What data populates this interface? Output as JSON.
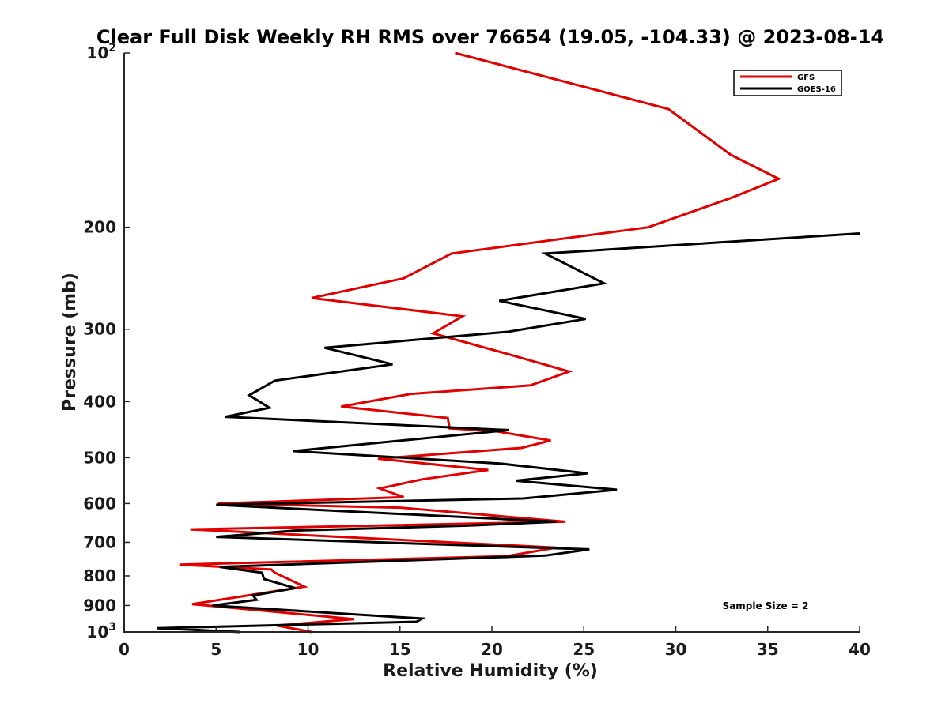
{
  "chart_data": {
    "type": "line",
    "title": "Clear Full Disk Weekly RH RMS over 76654 (19.05, -104.33) @ 2023-08-14",
    "xlabel": "Relative Humidity (%)",
    "ylabel": "Pressure (mb)",
    "xlim": [
      0,
      40
    ],
    "ylim": [
      100,
      1000
    ],
    "yscale": "log",
    "ydirection": "reverse",
    "xticks": [
      0,
      5,
      10,
      15,
      20,
      25,
      30,
      35,
      40
    ],
    "xtick_labels": [
      "0",
      "5",
      "10",
      "15",
      "20",
      "25",
      "30",
      "35",
      "40"
    ],
    "yticks": [
      100,
      200,
      300,
      400,
      500,
      600,
      700,
      800,
      900,
      1000
    ],
    "ytick_labels": [
      {
        "base": "10",
        "exp": "2"
      },
      {
        "base": "200",
        "exp": ""
      },
      {
        "base": "300",
        "exp": ""
      },
      {
        "base": "400",
        "exp": ""
      },
      {
        "base": "500",
        "exp": ""
      },
      {
        "base": "600",
        "exp": ""
      },
      {
        "base": "700",
        "exp": ""
      },
      {
        "base": "800",
        "exp": ""
      },
      {
        "base": "900",
        "exp": ""
      },
      {
        "base": "10",
        "exp": "3"
      }
    ],
    "legend_position": "top-right",
    "annotation": "Sample Size = 2",
    "series": [
      {
        "name": "GFS",
        "color": "#e00000",
        "points": [
          [
            18.0,
            100
          ],
          [
            29.6,
            125
          ],
          [
            33.0,
            150
          ],
          [
            35.6,
            165
          ],
          [
            33.0,
            178
          ],
          [
            28.5,
            200
          ],
          [
            17.8,
            222
          ],
          [
            15.2,
            245
          ],
          [
            10.2,
            265
          ],
          [
            18.4,
            285
          ],
          [
            16.8,
            305
          ],
          [
            20.7,
            330
          ],
          [
            24.2,
            355
          ],
          [
            22.1,
            375
          ],
          [
            15.6,
            388
          ],
          [
            11.8,
            408
          ],
          [
            17.6,
            427
          ],
          [
            17.7,
            445
          ],
          [
            20.2,
            450
          ],
          [
            23.2,
            467
          ],
          [
            21.6,
            481
          ],
          [
            13.8,
            502
          ],
          [
            19.8,
            525
          ],
          [
            16.2,
            545
          ],
          [
            13.9,
            565
          ],
          [
            15.2,
            585
          ],
          [
            5.1,
            600
          ],
          [
            15.0,
            610
          ],
          [
            24.0,
            645
          ],
          [
            3.6,
            665
          ],
          [
            9.7,
            680
          ],
          [
            23.5,
            715
          ],
          [
            20.8,
            740
          ],
          [
            3.0,
            765
          ],
          [
            8.0,
            780
          ],
          [
            8.2,
            790
          ],
          [
            9.8,
            835
          ],
          [
            3.7,
            895
          ],
          [
            12.5,
            950
          ],
          [
            8.3,
            975
          ],
          [
            10.2,
            1000
          ]
        ]
      },
      {
        "name": "GOES-16",
        "color": "#000000",
        "points": [
          [
            40.0,
            205
          ],
          [
            22.9,
            222
          ],
          [
            26.1,
            250
          ],
          [
            20.4,
            268
          ],
          [
            25.1,
            288
          ],
          [
            20.9,
            303
          ],
          [
            10.9,
            323
          ],
          [
            14.6,
            345
          ],
          [
            8.2,
            368
          ],
          [
            6.8,
            390
          ],
          [
            7.9,
            410
          ],
          [
            5.5,
            425
          ],
          [
            20.9,
            448
          ],
          [
            9.2,
            487
          ],
          [
            20.5,
            512
          ],
          [
            25.2,
            532
          ],
          [
            21.3,
            548
          ],
          [
            26.8,
            568
          ],
          [
            21.7,
            588
          ],
          [
            5.0,
            603
          ],
          [
            23.5,
            645
          ],
          [
            18.8,
            655
          ],
          [
            9.3,
            668
          ],
          [
            5.0,
            685
          ],
          [
            25.3,
            720
          ],
          [
            22.9,
            738
          ],
          [
            5.2,
            772
          ],
          [
            7.5,
            790
          ],
          [
            7.6,
            810
          ],
          [
            9.3,
            840
          ],
          [
            7.0,
            865
          ],
          [
            7.2,
            880
          ],
          [
            4.8,
            900
          ],
          [
            16.2,
            948
          ],
          [
            15.9,
            960
          ],
          [
            1.8,
            985
          ],
          [
            6.3,
            1000
          ]
        ]
      }
    ]
  }
}
